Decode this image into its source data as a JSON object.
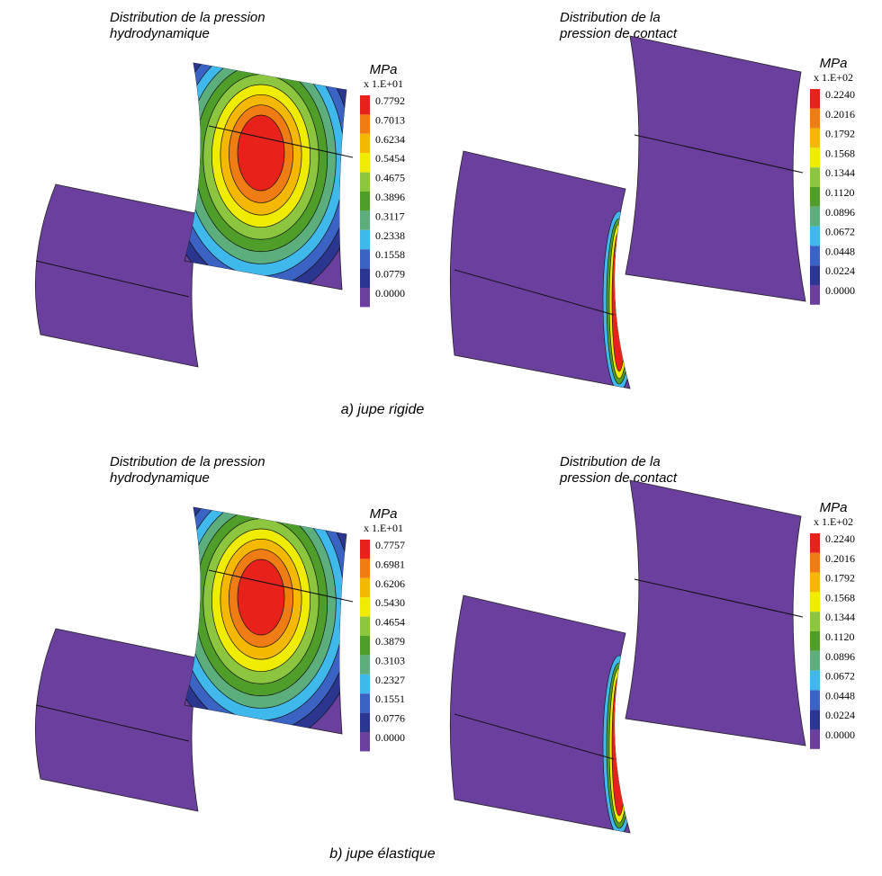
{
  "rows": [
    {
      "caption": "a) jupe rigide",
      "panels": [
        {
          "title_lines": [
            "Distribution de la pression",
            "hydrodynamique"
          ],
          "unit": "MPa",
          "multiplier": "x 1.E+01",
          "legend": [
            "0.7792",
            "0.7013",
            "0.6234",
            "0.5454",
            "0.4675",
            "0.3896",
            "0.3117",
            "0.2338",
            "0.1558",
            "0.0779",
            "0.0000"
          ]
        },
        {
          "title_lines": [
            "Distribution de la",
            "pression de contact"
          ],
          "unit": "MPa",
          "multiplier": "x 1.E+02",
          "legend": [
            "0.2240",
            "0.2016",
            "0.1792",
            "0.1568",
            "0.1344",
            "0.1120",
            "0.0896",
            "0.0672",
            "0.0448",
            "0.0224",
            "0.0000"
          ]
        }
      ]
    },
    {
      "caption": "b) jupe élastique",
      "panels": [
        {
          "title_lines": [
            "Distribution de la pression",
            "hydrodynamique"
          ],
          "unit": "MPa",
          "multiplier": "x 1.E+01",
          "legend": [
            "0.7757",
            "0.6981",
            "0.6206",
            "0.5430",
            "0.4654",
            "0.3879",
            "0.3103",
            "0.2327",
            "0.1551",
            "0.0776",
            "0.0000"
          ]
        },
        {
          "title_lines": [
            "Distribution de la",
            "pression de contact"
          ],
          "unit": "MPa",
          "multiplier": "x 1.E+02",
          "legend": [
            "0.2240",
            "0.2016",
            "0.1792",
            "0.1568",
            "0.1344",
            "0.1120",
            "0.0896",
            "0.0672",
            "0.0448",
            "0.0224",
            "0.0000"
          ]
        }
      ]
    }
  ]
}
